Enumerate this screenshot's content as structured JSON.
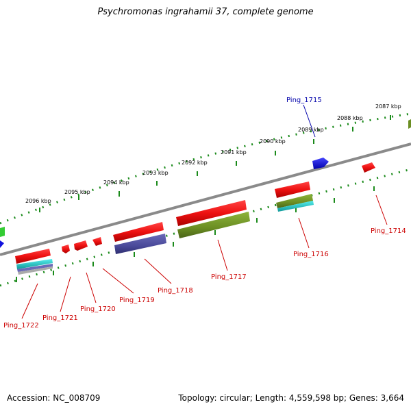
{
  "title": "Psychromonas ingrahamii 37, complete genome",
  "footer": {
    "accession": "Accession: NC_008709",
    "info": "Topology: circular; Length: 4,559,598 bp; Genes: 3,664"
  },
  "kbp_labels": [
    "2096 kbp",
    "2095 kbp",
    "2094 kbp",
    "2093 kbp",
    "2092 kbp",
    "2091 kbp",
    "2090 kbp",
    "2089 kbp",
    "2088 kbp",
    "2087 kbp"
  ],
  "gene_labels": [
    "Ping_1722",
    "Ping_1721",
    "Ping_1720",
    "Ping_1719",
    "Ping_1718",
    "Ping_1717",
    "Ping_1716",
    "Ping_1715",
    "Ping_1714"
  ],
  "colors": {
    "red": "#ee1111",
    "blue": "#1111dd",
    "olive": "#6b8e23",
    "navy": "#4a4a9a",
    "cyan": "#22cccc",
    "green_tick": "#1a8a1a",
    "backbone": "#808080",
    "label_red": "#cc0000",
    "label_blue": "#0000aa"
  }
}
